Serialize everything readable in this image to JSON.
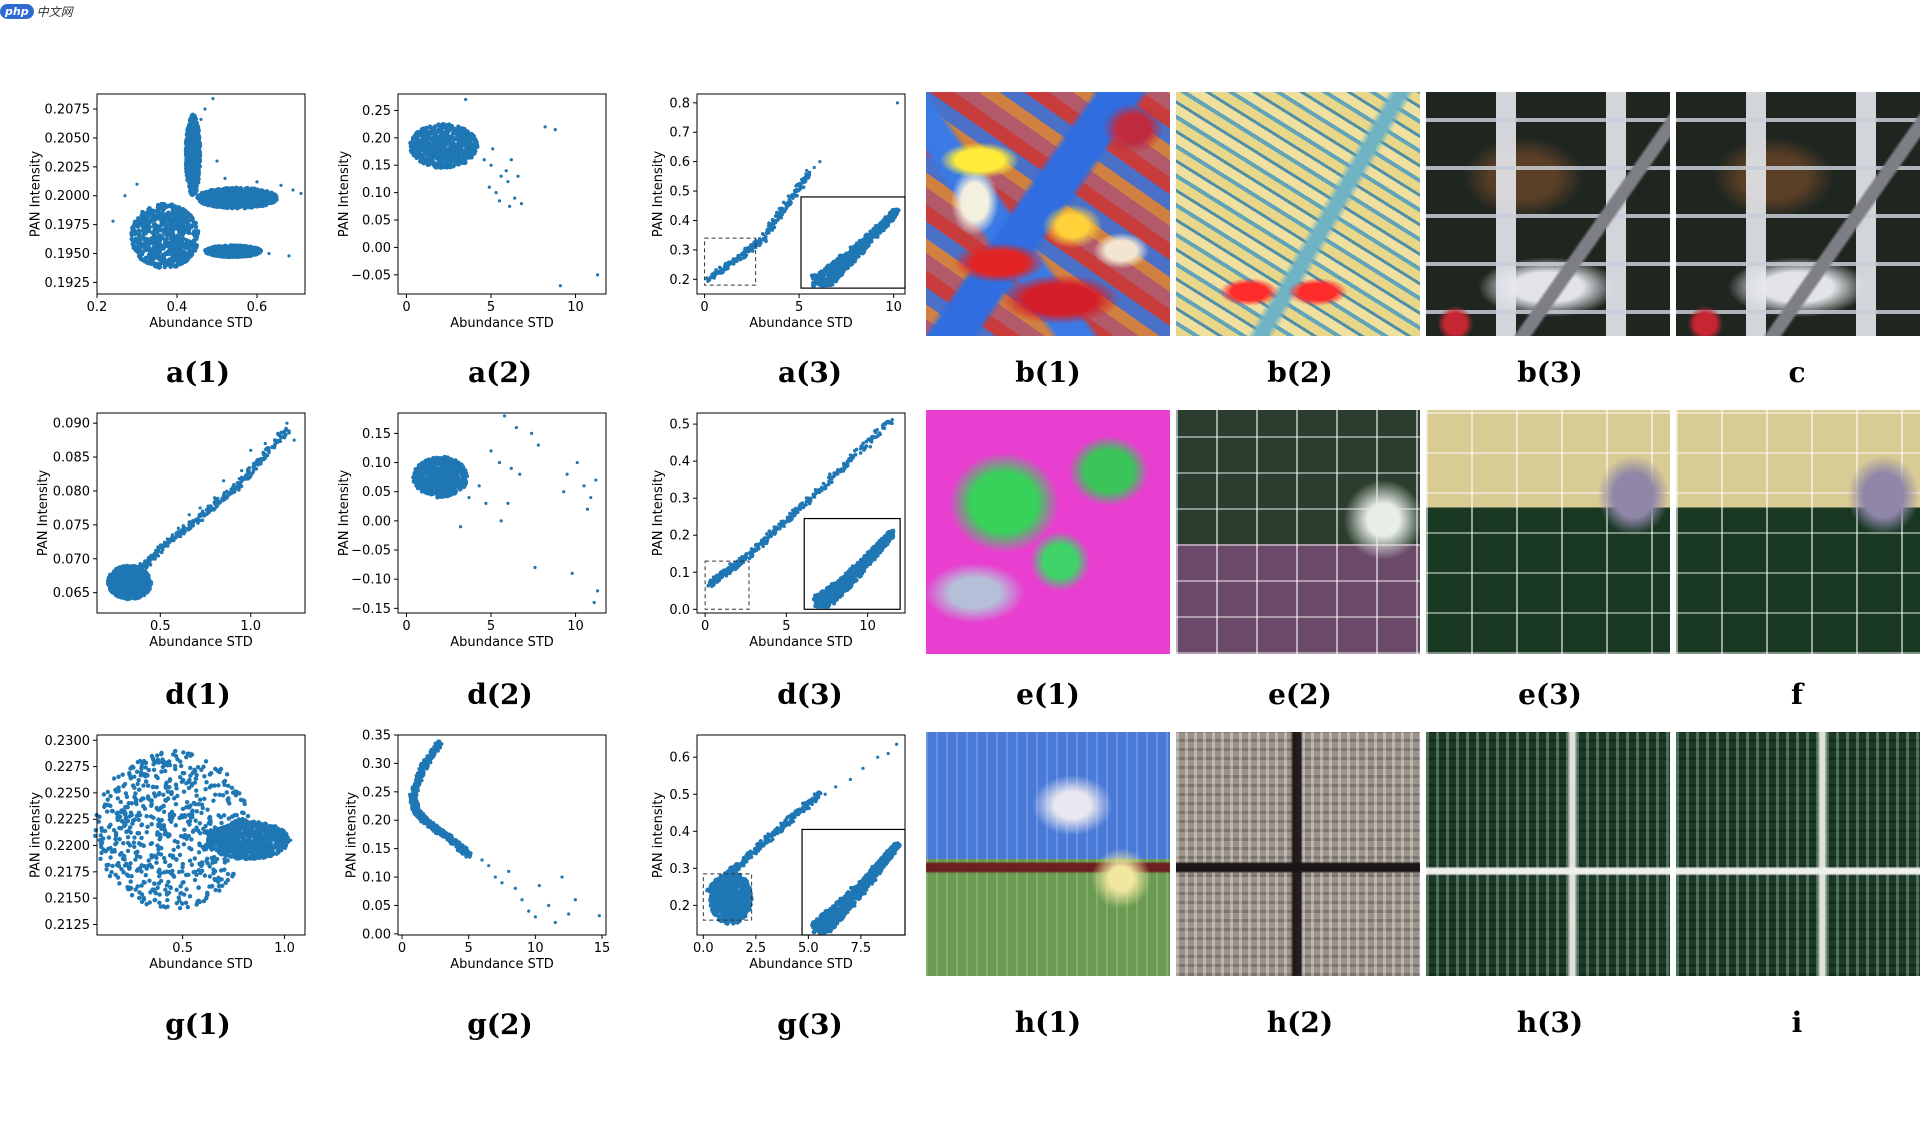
{
  "watermark": {
    "logo": "php",
    "text": "中文网"
  },
  "colors": {
    "points": "#1f77b4"
  },
  "captions": {
    "a1": "a(1)",
    "a2": "a(2)",
    "a3": "a(3)",
    "b1": "b(1)",
    "b2": "b(2)",
    "b3": "b(3)",
    "c": "c",
    "d1": "d(1)",
    "d2": "d(2)",
    "d3": "d(3)",
    "e1": "e(1)",
    "e2": "e(2)",
    "e3": "e(3)",
    "f": "f",
    "g1": "g(1)",
    "g2": "g(2)",
    "g3": "g(3)",
    "h1": "h(1)",
    "h2": "h(2)",
    "h3": "h(3)",
    "i": "i"
  },
  "chart_data": [
    {
      "id": "a1",
      "type": "scatter",
      "xlabel": "Abundance STD",
      "ylabel": "PAN Intensity",
      "xlim": [
        0.2,
        0.72
      ],
      "ylim": [
        0.1915,
        0.2088
      ],
      "xticks": [
        0.2,
        0.4,
        0.6
      ],
      "xtick_labels": [
        "0.2",
        "0.4",
        "0.6"
      ],
      "yticks": [
        0.1925,
        0.195,
        0.1975,
        0.2,
        0.2025,
        0.205,
        0.2075
      ],
      "ytick_labels": [
        "0.1925",
        "0.1950",
        "0.1975",
        "0.2000",
        "0.2025",
        "0.2050",
        "0.2075"
      ],
      "regions": [
        {
          "cx": 0.37,
          "cy": 0.1965,
          "rx": 0.085,
          "ry": 0.0028
        },
        {
          "cx": 0.44,
          "cy": 0.2035,
          "rx": 0.018,
          "ry": 0.0035
        },
        {
          "cx": 0.55,
          "cy": 0.1998,
          "rx": 0.1,
          "ry": 0.0009
        },
        {
          "cx": 0.54,
          "cy": 0.1952,
          "rx": 0.07,
          "ry": 0.0005
        }
      ],
      "points": [
        [
          0.49,
          0.2084
        ],
        [
          0.47,
          0.2075
        ],
        [
          0.46,
          0.2066
        ],
        [
          0.52,
          0.2015
        ],
        [
          0.6,
          0.2012
        ],
        [
          0.66,
          0.2009
        ],
        [
          0.69,
          0.2005
        ],
        [
          0.71,
          0.2002
        ],
        [
          0.63,
          0.195
        ],
        [
          0.68,
          0.1948
        ],
        [
          0.58,
          0.1953
        ],
        [
          0.24,
          0.1978
        ],
        [
          0.27,
          0.2
        ],
        [
          0.3,
          0.201
        ],
        [
          0.56,
          0.2005
        ],
        [
          0.5,
          0.203
        ],
        [
          0.62,
          0.2003
        ]
      ]
    },
    {
      "id": "a2",
      "type": "scatter",
      "xlabel": "Abundance STD",
      "ylabel": "PAN Intensity",
      "xlim": [
        -0.5,
        11.8
      ],
      "ylim": [
        -0.085,
        0.28
      ],
      "xticks": [
        0,
        5,
        10
      ],
      "xtick_labels": [
        "0",
        "5",
        "10"
      ],
      "yticks": [
        -0.05,
        0,
        0.05,
        0.1,
        0.15,
        0.2,
        0.25
      ],
      "ytick_labels": [
        "−0.05",
        "0.00",
        "0.05",
        "0.10",
        "0.15",
        "0.20",
        "0.25"
      ],
      "regions": [
        {
          "cx": 2.2,
          "cy": 0.185,
          "rx": 2.0,
          "ry": 0.04
        }
      ],
      "points": [
        [
          3.5,
          0.27
        ],
        [
          8.2,
          0.22
        ],
        [
          8.8,
          0.215
        ],
        [
          11.3,
          -0.05
        ],
        [
          9.1,
          -0.07
        ],
        [
          5.0,
          0.15
        ],
        [
          5.6,
          0.13
        ],
        [
          6.0,
          0.12
        ],
        [
          5.3,
          0.1
        ],
        [
          6.4,
          0.09
        ],
        [
          6.8,
          0.08
        ],
        [
          5.9,
          0.14
        ],
        [
          4.6,
          0.16
        ],
        [
          5.1,
          0.18
        ],
        [
          6.2,
          0.16
        ],
        [
          6.6,
          0.13
        ],
        [
          4.9,
          0.11
        ],
        [
          5.5,
          0.085
        ],
        [
          6.1,
          0.075
        ]
      ]
    },
    {
      "id": "a3",
      "type": "scatter",
      "xlabel": "Abundance STD",
      "ylabel": "PAN Intensity",
      "xlim": [
        -0.4,
        10.6
      ],
      "ylim": [
        0.15,
        0.83
      ],
      "xticks": [
        0,
        5,
        10
      ],
      "xtick_labels": [
        "0",
        "5",
        "10"
      ],
      "yticks": [
        0.2,
        0.3,
        0.4,
        0.5,
        0.6,
        0.7,
        0.8
      ],
      "ytick_labels": [
        "0.2",
        "0.3",
        "0.4",
        "0.5",
        "0.6",
        "0.7",
        "0.8"
      ],
      "line": [
        [
          0.2,
          0.2
        ],
        [
          3.0,
          0.33
        ],
        [
          5.5,
          0.56
        ]
      ],
      "points": [
        [
          10.2,
          0.8
        ],
        [
          6.1,
          0.6
        ],
        [
          5.4,
          0.57
        ],
        [
          5.8,
          0.58
        ]
      ],
      "zoom_box": {
        "x": [
          0,
          2.7
        ],
        "y": [
          0.18,
          0.34
        ]
      },
      "inset": {
        "x": [
          5.1,
          10.6
        ],
        "y": [
          0.17,
          0.48
        ]
      }
    },
    {
      "id": "d1",
      "type": "scatter",
      "xlabel": "Abundance STD",
      "ylabel": "PAN Intensity",
      "xlim": [
        0.15,
        1.3
      ],
      "ylim": [
        0.062,
        0.0915
      ],
      "xticks": [
        0.5,
        1.0
      ],
      "xtick_labels": [
        "0.5",
        "1.0"
      ],
      "yticks": [
        0.065,
        0.07,
        0.075,
        0.08,
        0.085,
        0.09
      ],
      "ytick_labels": [
        "0.065",
        "0.070",
        "0.075",
        "0.080",
        "0.085",
        "0.090"
      ],
      "line": [
        [
          0.25,
          0.065
        ],
        [
          0.55,
          0.0725
        ],
        [
          0.9,
          0.08
        ],
        [
          1.2,
          0.089
        ]
      ],
      "regions": [
        {
          "cx": 0.33,
          "cy": 0.0665,
          "rx": 0.12,
          "ry": 0.0025
        }
      ],
      "points": [
        [
          1.2,
          0.09
        ],
        [
          1.15,
          0.0885
        ],
        [
          1.08,
          0.087
        ],
        [
          1.0,
          0.086
        ],
        [
          0.95,
          0.083
        ],
        [
          0.85,
          0.0815
        ],
        [
          0.8,
          0.079
        ],
        [
          0.72,
          0.0775
        ],
        [
          0.66,
          0.0765
        ],
        [
          0.6,
          0.0745
        ],
        [
          1.24,
          0.0875
        ]
      ]
    },
    {
      "id": "d2",
      "type": "scatter",
      "xlabel": "Abundance STD",
      "ylabel": "PAN Intensity",
      "xlim": [
        -0.5,
        11.8
      ],
      "ylim": [
        -0.158,
        0.185
      ],
      "xticks": [
        0,
        5,
        10
      ],
      "xtick_labels": [
        "0",
        "5",
        "10"
      ],
      "yticks": [
        -0.15,
        -0.1,
        -0.05,
        0,
        0.05,
        0.1,
        0.15
      ],
      "ytick_labels": [
        "−0.15",
        "−0.10",
        "−0.05",
        "0.00",
        "0.05",
        "0.10",
        "0.15"
      ],
      "regions": [
        {
          "cx": 2.0,
          "cy": 0.075,
          "rx": 1.6,
          "ry": 0.035
        }
      ],
      "points": [
        [
          5.8,
          0.18
        ],
        [
          6.5,
          0.16
        ],
        [
          7.4,
          0.15
        ],
        [
          7.8,
          0.13
        ],
        [
          5.0,
          0.12
        ],
        [
          5.5,
          0.1
        ],
        [
          6.2,
          0.09
        ],
        [
          6.7,
          0.08
        ],
        [
          9.5,
          0.08
        ],
        [
          10.1,
          0.1
        ],
        [
          10.5,
          0.06
        ],
        [
          10.9,
          0.04
        ],
        [
          11.2,
          0.07
        ],
        [
          4.7,
          0.03
        ],
        [
          5.6,
          0.0
        ],
        [
          3.2,
          -0.01
        ],
        [
          7.6,
          -0.08
        ],
        [
          9.8,
          -0.09
        ],
        [
          11.3,
          -0.12
        ],
        [
          11.1,
          -0.14
        ],
        [
          9.3,
          0.05
        ],
        [
          10.7,
          0.02
        ],
        [
          4.3,
          0.06
        ],
        [
          3.7,
          0.04
        ],
        [
          6.0,
          0.03
        ]
      ]
    },
    {
      "id": "d3",
      "type": "scatter",
      "xlabel": "Abundance STD",
      "ylabel": "PAN Intensity",
      "xlim": [
        -0.5,
        12.3
      ],
      "ylim": [
        -0.01,
        0.53
      ],
      "xticks": [
        0,
        5,
        10
      ],
      "xtick_labels": [
        "0",
        "5",
        "10"
      ],
      "yticks": [
        0.0,
        0.1,
        0.2,
        0.3,
        0.4,
        0.5
      ],
      "ytick_labels": [
        "0.0",
        "0.1",
        "0.2",
        "0.3",
        "0.4",
        "0.5"
      ],
      "line": [
        [
          0.3,
          0.07
        ],
        [
          2.5,
          0.14
        ],
        [
          6.0,
          0.28
        ],
        [
          11.5,
          0.51
        ]
      ],
      "zoom_box": {
        "x": [
          0,
          2.7
        ],
        "y": [
          0.0,
          0.13
        ]
      },
      "inset": {
        "x": [
          6.1,
          12.0
        ],
        "y": [
          0.0,
          0.245
        ]
      }
    },
    {
      "id": "g1",
      "type": "scatter",
      "xlabel": "Abundance STD",
      "ylabel": "PAN intensity",
      "xlim": [
        0.08,
        1.1
      ],
      "ylim": [
        0.2115,
        0.2305
      ],
      "xticks": [
        0.5,
        1.0
      ],
      "xtick_labels": [
        "0.5",
        "1.0"
      ],
      "yticks": [
        0.2125,
        0.215,
        0.2175,
        0.22,
        0.2225,
        0.225,
        0.2275,
        0.23
      ],
      "ytick_labels": [
        "0.2125",
        "0.2150",
        "0.2175",
        "0.2200",
        "0.2225",
        "0.2250",
        "0.2275",
        "0.2300"
      ],
      "regions": [
        {
          "cx": 0.45,
          "cy": 0.2215,
          "rx": 0.38,
          "ry": 0.0075
        },
        {
          "cx": 0.82,
          "cy": 0.2205,
          "rx": 0.2,
          "ry": 0.0018
        }
      ],
      "points": [
        [
          1.03,
          0.2205
        ],
        [
          1.0,
          0.2198
        ],
        [
          0.98,
          0.221
        ]
      ]
    },
    {
      "id": "g2",
      "type": "scatter",
      "xlabel": "Abundance STD",
      "ylabel": "PAN intensity",
      "xlim": [
        -0.3,
        15.3
      ],
      "ylim": [
        -0.002,
        0.35
      ],
      "xticks": [
        0,
        5,
        10,
        15
      ],
      "xtick_labels": [
        "0",
        "5",
        "10",
        "15"
      ],
      "yticks": [
        0.0,
        0.05,
        0.1,
        0.15,
        0.2,
        0.25,
        0.3,
        0.35
      ],
      "ytick_labels": [
        "0.00",
        "0.05",
        "0.10",
        "0.15",
        "0.20",
        "0.25",
        "0.30",
        "0.35"
      ],
      "line": [
        [
          2.8,
          0.335
        ],
        [
          1.5,
          0.29
        ],
        [
          0.8,
          0.24
        ],
        [
          1.1,
          0.215
        ],
        [
          2.0,
          0.195
        ],
        [
          3.5,
          0.17
        ],
        [
          5.0,
          0.14
        ]
      ],
      "points": [
        [
          6.0,
          0.13
        ],
        [
          7.0,
          0.1
        ],
        [
          7.5,
          0.09
        ],
        [
          8.5,
          0.08
        ],
        [
          9.0,
          0.06
        ],
        [
          9.5,
          0.04
        ],
        [
          10.0,
          0.03
        ],
        [
          11.0,
          0.05
        ],
        [
          11.5,
          0.02
        ],
        [
          12.5,
          0.035
        ],
        [
          14.8,
          0.032
        ],
        [
          10.3,
          0.085
        ],
        [
          12.0,
          0.1
        ],
        [
          13.0,
          0.06
        ],
        [
          8.0,
          0.11
        ],
        [
          6.5,
          0.12
        ]
      ]
    },
    {
      "id": "g3",
      "type": "scatter",
      "xlabel": "Abundance STD",
      "ylabel": "PAN intensity",
      "xlim": [
        -0.3,
        9.6
      ],
      "ylim": [
        0.12,
        0.66
      ],
      "xticks": [
        0.0,
        2.5,
        5.0,
        7.5
      ],
      "xtick_labels": [
        "0.0",
        "2.5",
        "5.0",
        "7.5"
      ],
      "yticks": [
        0.2,
        0.3,
        0.4,
        0.5,
        0.6
      ],
      "ytick_labels": [
        "0.2",
        "0.3",
        "0.4",
        "0.5",
        "0.6"
      ],
      "line": [
        [
          0.3,
          0.24
        ],
        [
          1.5,
          0.3
        ],
        [
          3.5,
          0.4
        ],
        [
          5.5,
          0.5
        ]
      ],
      "regions": [
        {
          "cx": 1.3,
          "cy": 0.22,
          "rx": 1.0,
          "ry": 0.07
        }
      ],
      "points": [
        [
          9.2,
          0.635
        ],
        [
          8.8,
          0.61
        ],
        [
          8.3,
          0.6
        ],
        [
          7.6,
          0.57
        ],
        [
          7.0,
          0.54
        ],
        [
          6.3,
          0.52
        ],
        [
          5.8,
          0.5
        ]
      ],
      "zoom_box": {
        "x": [
          0,
          2.3
        ],
        "y": [
          0.16,
          0.285
        ]
      },
      "inset": {
        "x": [
          4.7,
          9.6
        ],
        "y": [
          0.12,
          0.405
        ]
      }
    }
  ]
}
